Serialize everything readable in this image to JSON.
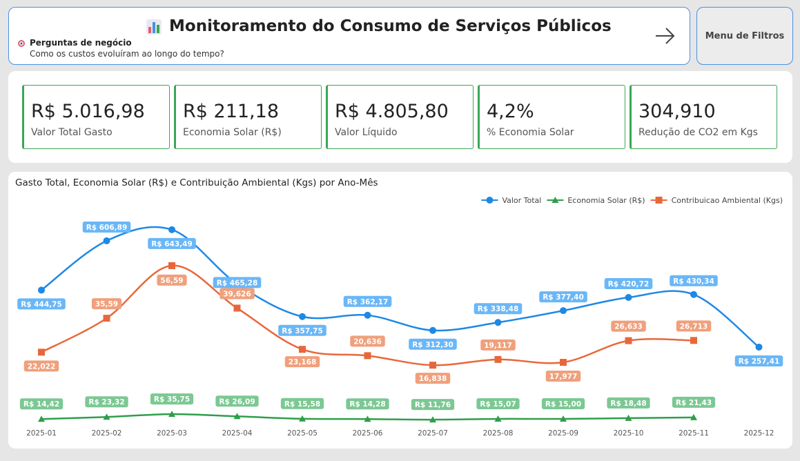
{
  "header": {
    "title": "Monitoramento do Consumo de Serviços Públicos",
    "question_title": "Perguntas de negócio",
    "question": "Como os custos evoluíram ao longo do tempo?",
    "menu_button": "Menu de Filtros"
  },
  "kpis": [
    {
      "value": "R$ 5.016,98",
      "label": "Valor Total Gasto"
    },
    {
      "value": "R$ 211,18",
      "label": "Economia Solar (R$)"
    },
    {
      "value": "R$ 4.805,80",
      "label": "Valor Líquido"
    },
    {
      "value": "4,2%",
      "label": "% Economia Solar"
    },
    {
      "value": "304,910",
      "label": "Redução de CO2 em Kgs"
    }
  ],
  "chart_data": {
    "type": "line",
    "title": "Gasto Total, Economia Solar (R$) e Contribuição Ambiental (Kgs) por Ano-Mês",
    "categories": [
      "2025-01",
      "2025-02",
      "2025-03",
      "2025-04",
      "2025-05",
      "2025-06",
      "2025-07",
      "2025-08",
      "2025-09",
      "2025-10",
      "2025-11",
      "2025-12"
    ],
    "legend": "top-right",
    "series": [
      {
        "name": "Valor Total",
        "color": "#1e88e5",
        "label_color": "#6ab7f7",
        "marker": "circle",
        "ylim": [
          10,
          718
        ],
        "values": [
          444.75,
          606.89,
          643.49,
          465.28,
          357.75,
          362.17,
          312.3,
          338.48,
          377.4,
          420.72,
          430.34,
          257.41
        ],
        "value_labels": [
          "R$ 444,75",
          "R$ 606,89",
          "R$ 643,49",
          "R$ 465,28",
          "R$ 357,75",
          "R$ 362,17",
          "R$ 312,30",
          "R$ 338,48",
          "R$ 377,40",
          "R$ 420,72",
          "R$ 430,34",
          "R$ 257,41"
        ]
      },
      {
        "name": "Economia Solar (R$)",
        "color": "#2e9e4a",
        "label_color": "#7cc893",
        "marker": "triangle",
        "ylim": [
          0,
          936
        ],
        "values": [
          14.42,
          23.32,
          35.75,
          26.09,
          15.58,
          14.28,
          11.76,
          15.07,
          15.0,
          18.48,
          21.43,
          null
        ],
        "value_labels": [
          "R$ 14,42",
          "R$ 23,32",
          "R$ 35,75",
          "R$ 26,09",
          "R$ 15,58",
          "R$ 14,28",
          "R$ 11,76",
          "R$ 15,07",
          "R$ 15,00",
          "R$ 18,48",
          "R$ 21,43",
          null
        ]
      },
      {
        "name": "Contribuicao Ambiental (Kgs)",
        "color": "#e8673a",
        "label_color": "#f0a07c",
        "marker": "square",
        "ylim": [
          -6,
          80
        ],
        "values": [
          22.022,
          35.59,
          56.59,
          39.626,
          23.168,
          20.636,
          16.838,
          19.117,
          17.977,
          26.633,
          26.713,
          null
        ],
        "value_labels": [
          "22,022",
          "35,59",
          "56,59",
          "39,626",
          "23,168",
          "20,636",
          "16,838",
          "19,117",
          "17,977",
          "26,633",
          "26,713",
          null
        ]
      }
    ]
  }
}
